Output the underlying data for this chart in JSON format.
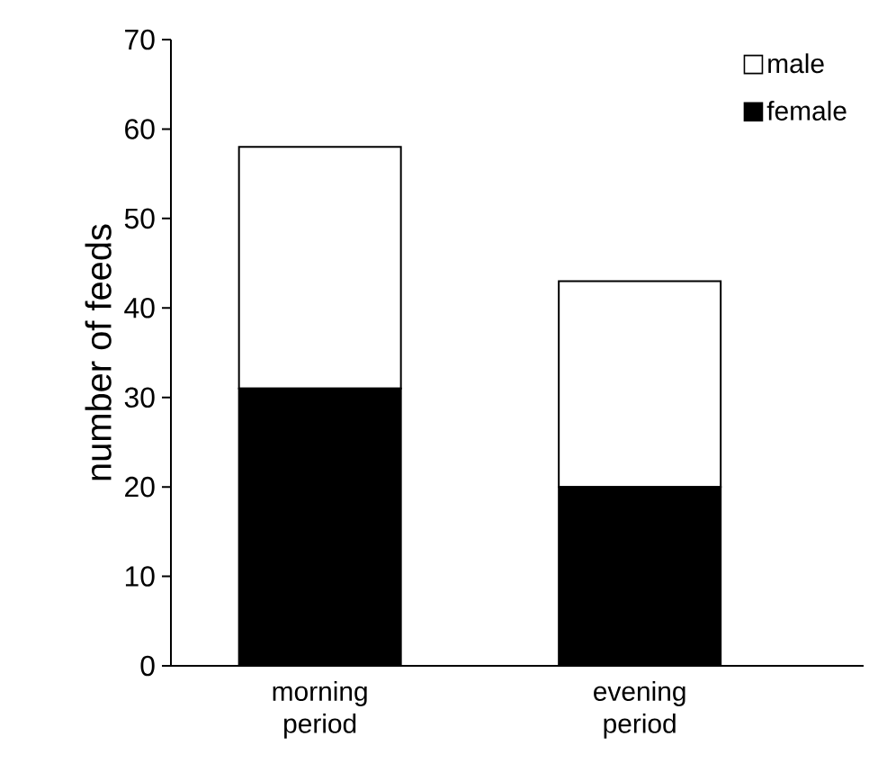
{
  "chart_data": {
    "type": "bar",
    "stacked": true,
    "ylabel": "number of feeds",
    "categories": [
      "morning period",
      "evening period"
    ],
    "series": [
      {
        "name": "female",
        "color": "#000000",
        "values": [
          31,
          20
        ]
      },
      {
        "name": "male",
        "color": "#ffffff",
        "values": [
          27,
          23
        ]
      }
    ],
    "ylim": [
      0,
      70
    ],
    "yticks": [
      0,
      10,
      20,
      30,
      40,
      50,
      60,
      70
    ],
    "legend": "top right"
  }
}
